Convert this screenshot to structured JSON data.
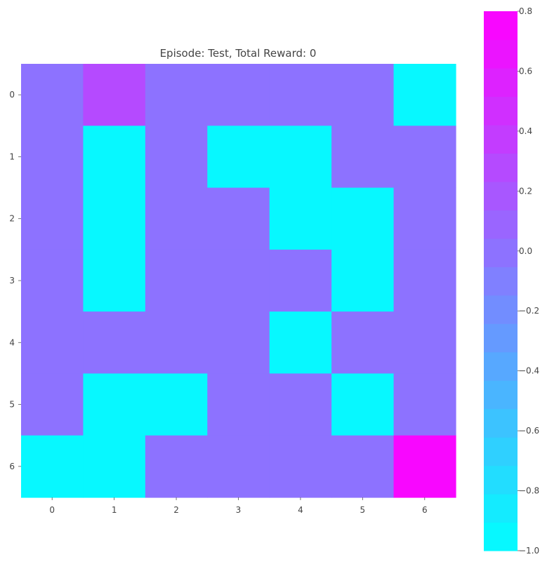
{
  "chart_data": {
    "type": "heatmap",
    "title": "Episode: Test, Total Reward: 0",
    "xlabel": "",
    "ylabel": "",
    "x_tick_labels": [
      "0",
      "1",
      "2",
      "3",
      "4",
      "5",
      "6"
    ],
    "y_tick_labels": [
      "0",
      "1",
      "2",
      "3",
      "4",
      "5",
      "6"
    ],
    "values": [
      [
        0.0,
        0.3,
        0.0,
        0.0,
        0.0,
        0.0,
        -1.0
      ],
      [
        0.0,
        -1.0,
        0.0,
        -1.0,
        -1.0,
        0.0,
        0.0
      ],
      [
        0.0,
        -1.0,
        0.0,
        0.0,
        -1.0,
        -1.0,
        0.0
      ],
      [
        0.0,
        -1.0,
        0.0,
        0.0,
        0.0,
        -1.0,
        0.0
      ],
      [
        0.0,
        0.0,
        0.0,
        0.0,
        -1.0,
        0.0,
        0.0
      ],
      [
        0.0,
        -1.0,
        -1.0,
        0.0,
        0.0,
        -1.0,
        0.0
      ],
      [
        -1.0,
        -1.0,
        0.0,
        0.0,
        0.0,
        0.0,
        0.8
      ]
    ],
    "colormap": "cool",
    "colormap_colors": [
      "#00ffff",
      "#ff00ff"
    ],
    "vmin": -1.0,
    "vmax": 0.8,
    "colorbar_levels": 19,
    "colorbar": {
      "ticks": [
        0.8,
        0.6,
        0.4,
        0.2,
        0.0,
        -0.2,
        -0.4,
        -0.6,
        -0.8,
        -1.0
      ],
      "tick_labels": [
        "0.8",
        "0.6",
        "0.4",
        "0.2",
        "0.0",
        "−0.2",
        "−0.4",
        "−0.6",
        "−0.8",
        "−1.0"
      ]
    },
    "grid": false,
    "legend": "colorbar-right"
  }
}
